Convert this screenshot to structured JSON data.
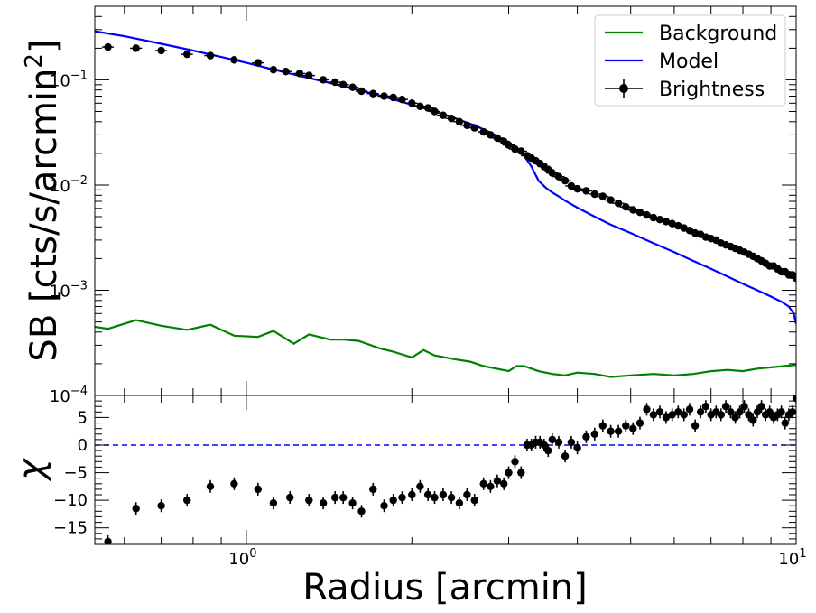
{
  "chart_data": [
    {
      "type": "line",
      "panel": "surface-brightness",
      "xscale": "log",
      "yscale": "log",
      "xlim": [
        0.53,
        10
      ],
      "ylim": [
        0.0001,
        0.5
      ],
      "xlabel": "Radius [arcmin]",
      "ylabel_text": "SB [cts/s/arcmin",
      "ylabel_sup": "2",
      "ylabel_close": "]",
      "y_ticks": [
        {
          "value": 0.1,
          "base": "10",
          "exp": "−1"
        },
        {
          "value": 0.01,
          "base": "10",
          "exp": "−2"
        },
        {
          "value": 0.001,
          "base": "10",
          "exp": "−3"
        },
        {
          "value": 0.0001,
          "base": "10",
          "exp": "−4"
        }
      ],
      "legend": {
        "placement": "top-right",
        "entries": [
          "Background",
          "Model",
          "Brightness"
        ]
      },
      "colors": {
        "background": "#008000",
        "model": "#0000ff",
        "brightness": "#000000"
      },
      "series": [
        {
          "name": "Background",
          "kind": "line",
          "x": [
            0.53,
            0.56,
            0.63,
            0.7,
            0.78,
            0.86,
            0.95,
            1.05,
            1.12,
            1.22,
            1.3,
            1.42,
            1.5,
            1.6,
            1.75,
            1.85,
            2.0,
            2.1,
            2.2,
            2.3,
            2.4,
            2.55,
            2.7,
            2.85,
            3.0,
            3.1,
            3.2,
            3.4,
            3.6,
            3.8,
            4.0,
            4.3,
            4.6,
            5.0,
            5.5,
            6.0,
            6.5,
            7.0,
            7.5,
            8.0,
            8.5,
            9.0,
            9.5,
            10.0
          ],
          "y": [
            0.00045,
            0.00043,
            0.00052,
            0.00046,
            0.00042,
            0.00047,
            0.00037,
            0.00036,
            0.00041,
            0.00031,
            0.00038,
            0.00034,
            0.00034,
            0.00033,
            0.00028,
            0.00026,
            0.00023,
            0.00027,
            0.00024,
            0.00023,
            0.00022,
            0.00021,
            0.00019,
            0.00018,
            0.00017,
            0.00019,
            0.00019,
            0.00017,
            0.00016,
            0.000155,
            0.000165,
            0.00016,
            0.00015,
            0.000155,
            0.00016,
            0.000155,
            0.00016,
            0.00017,
            0.000175,
            0.00017,
            0.00018,
            0.000185,
            0.00019,
            0.000195
          ]
        },
        {
          "name": "Model",
          "kind": "line",
          "x": [
            0.53,
            0.6,
            0.7,
            0.8,
            0.9,
            1.0,
            1.2,
            1.4,
            1.6,
            1.8,
            2.0,
            2.2,
            2.4,
            2.6,
            2.8,
            3.0,
            3.1,
            3.2,
            3.3,
            3.4,
            3.5,
            3.6,
            3.7,
            3.8,
            4.0,
            4.3,
            4.6,
            5.0,
            5.5,
            6.0,
            6.5,
            7.0,
            7.5,
            8.0,
            8.5,
            9.0,
            9.4,
            9.7,
            9.9,
            10.0
          ],
          "y": [
            0.29,
            0.26,
            0.22,
            0.19,
            0.165,
            0.145,
            0.115,
            0.095,
            0.08,
            0.068,
            0.058,
            0.05,
            0.043,
            0.037,
            0.031,
            0.025,
            0.022,
            0.019,
            0.015,
            0.011,
            0.0095,
            0.0085,
            0.0078,
            0.0071,
            0.0061,
            0.005,
            0.0042,
            0.0035,
            0.0028,
            0.0023,
            0.0019,
            0.0016,
            0.00135,
            0.00115,
            0.001,
            0.00087,
            0.00078,
            0.0007,
            0.0006,
            0.00048
          ]
        },
        {
          "name": "Brightness",
          "kind": "errorbar",
          "x": [
            0.56,
            0.63,
            0.7,
            0.78,
            0.86,
            0.95,
            1.05,
            1.12,
            1.18,
            1.25,
            1.3,
            1.38,
            1.45,
            1.5,
            1.56,
            1.62,
            1.7,
            1.78,
            1.85,
            1.92,
            2.0,
            2.07,
            2.14,
            2.2,
            2.28,
            2.36,
            2.44,
            2.52,
            2.6,
            2.7,
            2.78,
            2.86,
            2.94,
            3.0,
            3.08,
            3.16,
            3.24,
            3.3,
            3.36,
            3.42,
            3.48,
            3.54,
            3.6,
            3.7,
            3.8,
            3.9,
            4.0,
            4.15,
            4.3,
            4.45,
            4.6,
            4.75,
            4.9,
            5.05,
            5.2,
            5.35,
            5.5,
            5.65,
            5.8,
            5.95,
            6.1,
            6.25,
            6.4,
            6.55,
            6.7,
            6.85,
            7.0,
            7.15,
            7.3,
            7.45,
            7.6,
            7.75,
            7.9,
            8.05,
            8.2,
            8.35,
            8.5,
            8.65,
            8.8,
            8.95,
            9.1,
            9.25,
            9.4,
            9.55,
            9.7,
            9.85,
            10.0
          ],
          "y": [
            0.205,
            0.2,
            0.19,
            0.175,
            0.17,
            0.155,
            0.145,
            0.125,
            0.12,
            0.115,
            0.11,
            0.1,
            0.095,
            0.09,
            0.085,
            0.078,
            0.074,
            0.07,
            0.068,
            0.065,
            0.06,
            0.056,
            0.054,
            0.05,
            0.046,
            0.043,
            0.04,
            0.037,
            0.035,
            0.032,
            0.03,
            0.028,
            0.026,
            0.024,
            0.022,
            0.021,
            0.019,
            0.018,
            0.017,
            0.016,
            0.015,
            0.014,
            0.013,
            0.012,
            0.011,
            0.0098,
            0.0092,
            0.0088,
            0.0082,
            0.0078,
            0.0072,
            0.0067,
            0.0062,
            0.0058,
            0.0055,
            0.0052,
            0.0049,
            0.0047,
            0.0045,
            0.0043,
            0.0041,
            0.0039,
            0.0037,
            0.0035,
            0.0034,
            0.0032,
            0.0031,
            0.003,
            0.0028,
            0.0027,
            0.0026,
            0.0025,
            0.0024,
            0.0023,
            0.0022,
            0.0021,
            0.002,
            0.0019,
            0.0018,
            0.0017,
            0.0017,
            0.0016,
            0.0015,
            0.0015,
            0.0014,
            0.0014,
            0.0013
          ]
        }
      ]
    },
    {
      "type": "scatter",
      "panel": "residuals",
      "xscale": "log",
      "xlim": [
        0.53,
        10
      ],
      "ylim": [
        -18,
        9
      ],
      "ylabel": "χ",
      "xlabel": "Radius [arcmin]",
      "x_ticks": [
        {
          "value": 1,
          "base": "10",
          "exp": "0"
        },
        {
          "value": 10,
          "base": "10",
          "exp": "1"
        }
      ],
      "y_ticks": [
        5,
        0,
        -5,
        -10,
        -15
      ],
      "y_tick_labels": [
        "5",
        "0",
        "−5",
        "−10",
        "−15"
      ],
      "reference_line": {
        "y": 0,
        "style": "dashed",
        "color": "#0000ff"
      },
      "series": [
        {
          "name": "",
          "kind": "errorbar",
          "color": "#000000",
          "x": [
            0.56,
            0.63,
            0.7,
            0.78,
            0.86,
            0.95,
            1.05,
            1.12,
            1.2,
            1.3,
            1.38,
            1.45,
            1.5,
            1.56,
            1.62,
            1.7,
            1.78,
            1.85,
            1.92,
            2.0,
            2.07,
            2.14,
            2.2,
            2.28,
            2.36,
            2.44,
            2.52,
            2.6,
            2.7,
            2.78,
            2.86,
            2.94,
            3.0,
            3.08,
            3.16,
            3.24,
            3.3,
            3.36,
            3.42,
            3.48,
            3.54,
            3.6,
            3.7,
            3.8,
            3.9,
            4.0,
            4.15,
            4.3,
            4.45,
            4.6,
            4.75,
            4.9,
            5.05,
            5.2,
            5.35,
            5.5,
            5.65,
            5.8,
            5.95,
            6.1,
            6.25,
            6.4,
            6.55,
            6.7,
            6.85,
            7.0,
            7.15,
            7.3,
            7.45,
            7.6,
            7.75,
            7.9,
            8.05,
            8.2,
            8.35,
            8.5,
            8.65,
            8.8,
            8.95,
            9.1,
            9.25,
            9.4,
            9.55,
            9.7,
            9.85,
            10.0
          ],
          "y": [
            -17.5,
            -11.5,
            -11,
            -10,
            -7.5,
            -7,
            -8,
            -10.5,
            -9.5,
            -10,
            -10.5,
            -9.5,
            -9.5,
            -10.5,
            -12,
            -8,
            -11,
            -10,
            -9.5,
            -9,
            -7.5,
            -9,
            -9.5,
            -9,
            -9.5,
            -10.5,
            -9,
            -10,
            -7,
            -7.5,
            -6.5,
            -7,
            -5,
            -3,
            -5,
            0,
            0,
            0.5,
            0.5,
            0,
            -1,
            1,
            0.5,
            -2,
            0.5,
            -0.5,
            1.5,
            2,
            3.5,
            2.5,
            2.5,
            3.5,
            3,
            4,
            6.5,
            5.5,
            6,
            5,
            5.5,
            6,
            5.5,
            6.5,
            3.5,
            6,
            7,
            5.5,
            6,
            5.5,
            7,
            6,
            5,
            6,
            7,
            5.5,
            4.5,
            6,
            7,
            5.5,
            6,
            5,
            5.5,
            6,
            4,
            5.5,
            6,
            8.5
          ]
        }
      ]
    }
  ]
}
